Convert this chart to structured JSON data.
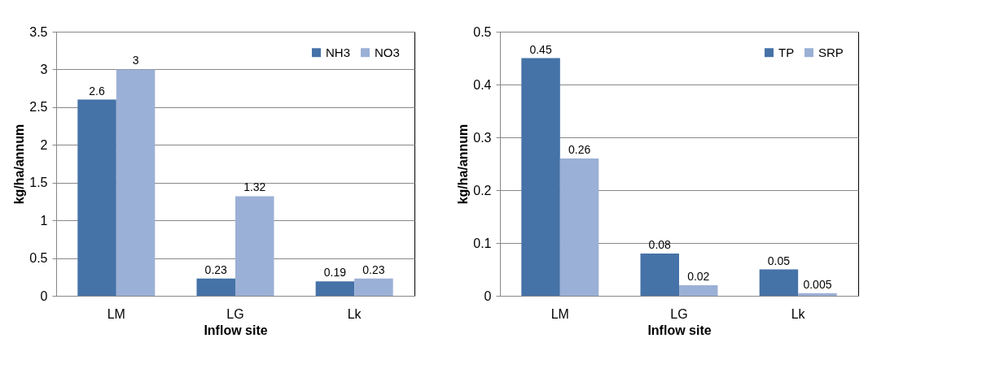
{
  "chart_data": [
    {
      "type": "bar",
      "xlabel": "Inflow site",
      "ylabel": "kg/ha/annum",
      "categories": [
        "LM",
        "LG",
        "Lk"
      ],
      "series": [
        {
          "name": "NH3",
          "color": "#4572a7",
          "values": [
            2.6,
            0.23,
            0.19
          ]
        },
        {
          "name": "NO3",
          "color": "#9bb0d6",
          "values": [
            3,
            1.32,
            0.23
          ]
        }
      ],
      "ylim": [
        0,
        3.5
      ],
      "yticks": [
        0,
        0.5,
        1,
        1.5,
        2,
        2.5,
        3,
        3.5
      ],
      "grid": "y",
      "legend": "top right",
      "data_labels": true
    },
    {
      "type": "bar",
      "xlabel": "Inflow site",
      "ylabel": "kg/ha/annum",
      "categories": [
        "LM",
        "LG",
        "Lk"
      ],
      "series": [
        {
          "name": "TP",
          "color": "#4572a7",
          "values": [
            0.45,
            0.08,
            0.05
          ]
        },
        {
          "name": "SRP",
          "color": "#9bb0d6",
          "values": [
            0.26,
            0.02,
            0.005
          ]
        }
      ],
      "ylim": [
        0,
        0.5
      ],
      "yticks": [
        0,
        0.1,
        0.2,
        0.3,
        0.4,
        0.5
      ],
      "grid": "y",
      "legend": "top right",
      "data_labels": true
    }
  ]
}
